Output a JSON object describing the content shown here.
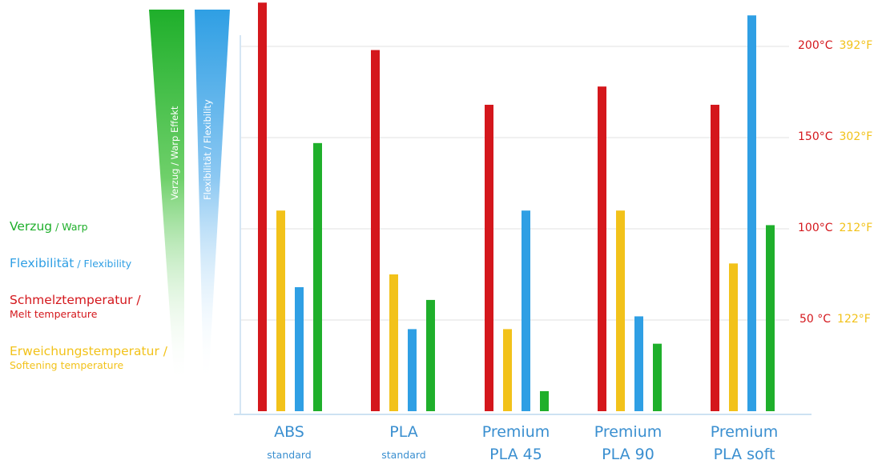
{
  "chart_data": {
    "type": "bar",
    "categories": [
      {
        "line1": "ABS",
        "line2": "standard"
      },
      {
        "line1": "PLA",
        "line2": "standard"
      },
      {
        "line1": "Premium",
        "line2": "PLA 45"
      },
      {
        "line1": "Premium",
        "line2": "PLA 90"
      },
      {
        "line1": "Premium",
        "line2": "PLA soft"
      }
    ],
    "series": [
      {
        "key": "melt",
        "color": "#d4171c",
        "values": [
          224,
          198,
          168,
          178,
          168
        ]
      },
      {
        "key": "soft",
        "color": "#f2c21a",
        "values": [
          110,
          75,
          45,
          110,
          81
        ]
      },
      {
        "key": "flex",
        "color": "#2f9fe4",
        "values": [
          68,
          45,
          110,
          52,
          217
        ]
      },
      {
        "key": "warp",
        "color": "#1faf2b",
        "values": [
          147,
          61,
          11,
          37,
          102
        ]
      }
    ],
    "yticks": [
      {
        "value": 200,
        "celsius": "200°C",
        "fahrenheit": "392°F"
      },
      {
        "value": 150,
        "celsius": "150°C",
        "fahrenheit": "302°F"
      },
      {
        "value": 100,
        "celsius": "100°C",
        "fahrenheit": "212°F"
      },
      {
        "value": 50,
        "celsius": "50 °C",
        "fahrenheit": "122°F"
      }
    ],
    "ylim": [
      0,
      230
    ],
    "grid": true,
    "legend": {
      "warp": {
        "main": "Verzug",
        "sub": " / Warp"
      },
      "flex": {
        "main": "Flexibilität",
        "sub": " / Flexibility"
      },
      "melt": {
        "main": "Schmelztemperatur /",
        "sub": "Melt temperature"
      },
      "soft": {
        "main": "Erweichungstemperatur /",
        "sub": "Softening temperature"
      }
    },
    "wedges": {
      "warp": {
        "label": "Verzug / Warp Effekt",
        "color": "#1faf2b"
      },
      "flex": {
        "label": "Flexibilität / Flexibility",
        "color": "#2f9fe4"
      }
    }
  }
}
